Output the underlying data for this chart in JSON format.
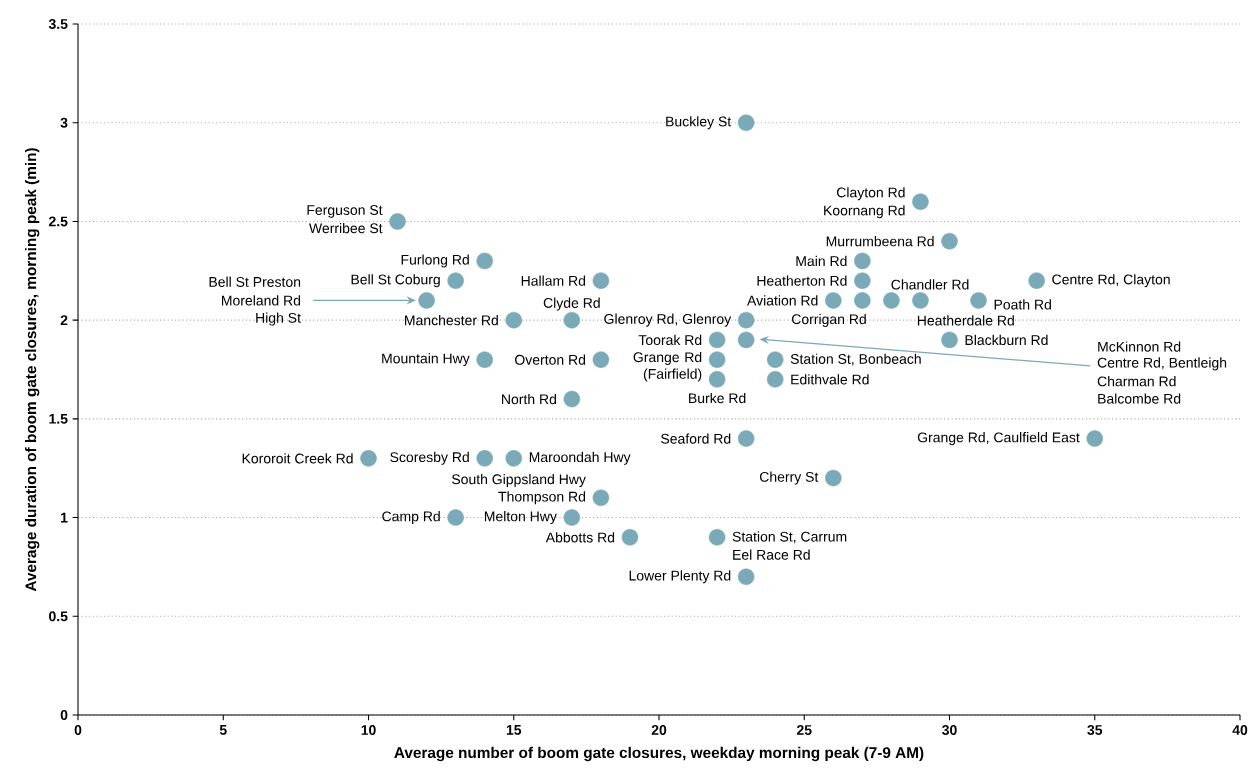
{
  "chart_data": {
    "type": "scatter",
    "xlabel": "Average number of boom gate closures, weekday morning peak (7-9 AM)",
    "ylabel": "Average duration of boom gate closures, morning peak (min)",
    "x": [
      23,
      29,
      11,
      30,
      14,
      27,
      13,
      18,
      27,
      33,
      12,
      26,
      27,
      28,
      29,
      31,
      15,
      17,
      23,
      22,
      23,
      30,
      14,
      18,
      22,
      24,
      22,
      24,
      17,
      23,
      35,
      10,
      14,
      15,
      26,
      18,
      13,
      17,
      19,
      22,
      23
    ],
    "values": [
      3.0,
      2.6,
      2.5,
      2.4,
      2.3,
      2.3,
      2.2,
      2.2,
      2.2,
      2.2,
      2.1,
      2.1,
      2.1,
      2.1,
      2.1,
      2.1,
      2.0,
      2.0,
      2.0,
      1.9,
      1.9,
      1.9,
      1.8,
      1.8,
      1.8,
      1.8,
      1.7,
      1.7,
      1.6,
      1.4,
      1.4,
      1.3,
      1.3,
      1.3,
      1.2,
      1.1,
      1.0,
      1.0,
      0.9,
      0.9,
      0.7
    ],
    "color": "#7aaab8",
    "xlim": [
      0,
      40
    ],
    "ylim": [
      0,
      3.5
    ],
    "xticks": [
      0,
      5,
      10,
      15,
      20,
      25,
      30,
      35,
      40
    ],
    "yticks": [
      0,
      0.5,
      1,
      1.5,
      2,
      2.5,
      3,
      3.5
    ],
    "grid": "y",
    "annotations": [
      {
        "text": "Buckley St",
        "x": 23,
        "y": 3.0
      },
      {
        "text": "Clayton Rd",
        "x": 29,
        "y": 2.6
      },
      {
        "text": "Koornang Rd",
        "x": 29,
        "y": 2.6
      },
      {
        "text": "Ferguson St",
        "x": 11,
        "y": 2.5
      },
      {
        "text": "Werribee St",
        "x": 11,
        "y": 2.5
      },
      {
        "text": "Murrumbeena Rd",
        "x": 30,
        "y": 2.4
      },
      {
        "text": "Furlong Rd",
        "x": 14,
        "y": 2.3
      },
      {
        "text": "Main Rd",
        "x": 27,
        "y": 2.3
      },
      {
        "text": "Bell St Coburg",
        "x": 13,
        "y": 2.2
      },
      {
        "text": "Hallam Rd",
        "x": 18,
        "y": 2.2
      },
      {
        "text": "Heatherton Rd",
        "x": 27,
        "y": 2.2
      },
      {
        "text": "Centre Rd, Clayton",
        "x": 33,
        "y": 2.2
      },
      "Bell St Preston",
      "Moreland Rd",
      "High St",
      {
        "text": "Aviation Rd",
        "x": 26,
        "y": 2.1
      },
      {
        "text": "Corrigan Rd",
        "x": 27,
        "y": 2.1
      },
      {
        "text": "Chandler Rd",
        "x": 28,
        "y": 2.1
      },
      {
        "text": "Heatherdale Rd",
        "x": 29,
        "y": 2.1
      },
      {
        "text": "Poath Rd",
        "x": 31,
        "y": 2.1
      },
      {
        "text": "Manchester Rd",
        "x": 15,
        "y": 2.0
      },
      {
        "text": "Clyde Rd",
        "x": 17,
        "y": 2.0
      },
      {
        "text": "Glenroy Rd, Glenroy",
        "x": 23,
        "y": 2.0
      },
      {
        "text": "Toorak Rd",
        "x": 22,
        "y": 1.9
      },
      "McKinnon Rd",
      "Centre Rd, Bentleigh",
      "Charman Rd",
      "Balcombe Rd",
      {
        "text": "Blackburn Rd",
        "x": 30,
        "y": 1.9
      },
      {
        "text": "Mountain Hwy",
        "x": 14,
        "y": 1.8
      },
      {
        "text": "Overton Rd",
        "x": 18,
        "y": 1.8
      },
      {
        "text": "Grange Rd (Fairfield)",
        "x": 22,
        "y": 1.8
      },
      {
        "text": "Station St, Bonbeach",
        "x": 24,
        "y": 1.8
      },
      {
        "text": "Burke Rd",
        "x": 22,
        "y": 1.7
      },
      {
        "text": "Edithvale Rd",
        "x": 24,
        "y": 1.7
      },
      {
        "text": "North Rd",
        "x": 17,
        "y": 1.6
      },
      {
        "text": "Seaford Rd",
        "x": 23,
        "y": 1.4
      },
      {
        "text": "Grange Rd, Caulfield East",
        "x": 35,
        "y": 1.4
      },
      {
        "text": "Kororoit Creek Rd",
        "x": 10,
        "y": 1.3
      },
      {
        "text": "Scoresby Rd",
        "x": 14,
        "y": 1.3
      },
      {
        "text": "Maroondah Hwy",
        "x": 15,
        "y": 1.3
      },
      {
        "text": "Cherry St",
        "x": 26,
        "y": 1.2
      },
      {
        "text": "South Gippsland Hwy",
        "x": 18,
        "y": 1.1
      },
      {
        "text": "Thompson Rd",
        "x": 18,
        "y": 1.1
      },
      {
        "text": "Camp Rd",
        "x": 13,
        "y": 1.0
      },
      {
        "text": "Melton Hwy",
        "x": 17,
        "y": 1.0
      },
      {
        "text": "Abbotts Rd",
        "x": 19,
        "y": 0.9
      },
      {
        "text": "Station St, Carrum",
        "x": 22,
        "y": 0.9
      },
      {
        "text": "Eel Race Rd",
        "x": 22,
        "y": 0.9
      },
      {
        "text": "Lower Plenty Rd",
        "x": 23,
        "y": 0.7
      }
    ]
  }
}
